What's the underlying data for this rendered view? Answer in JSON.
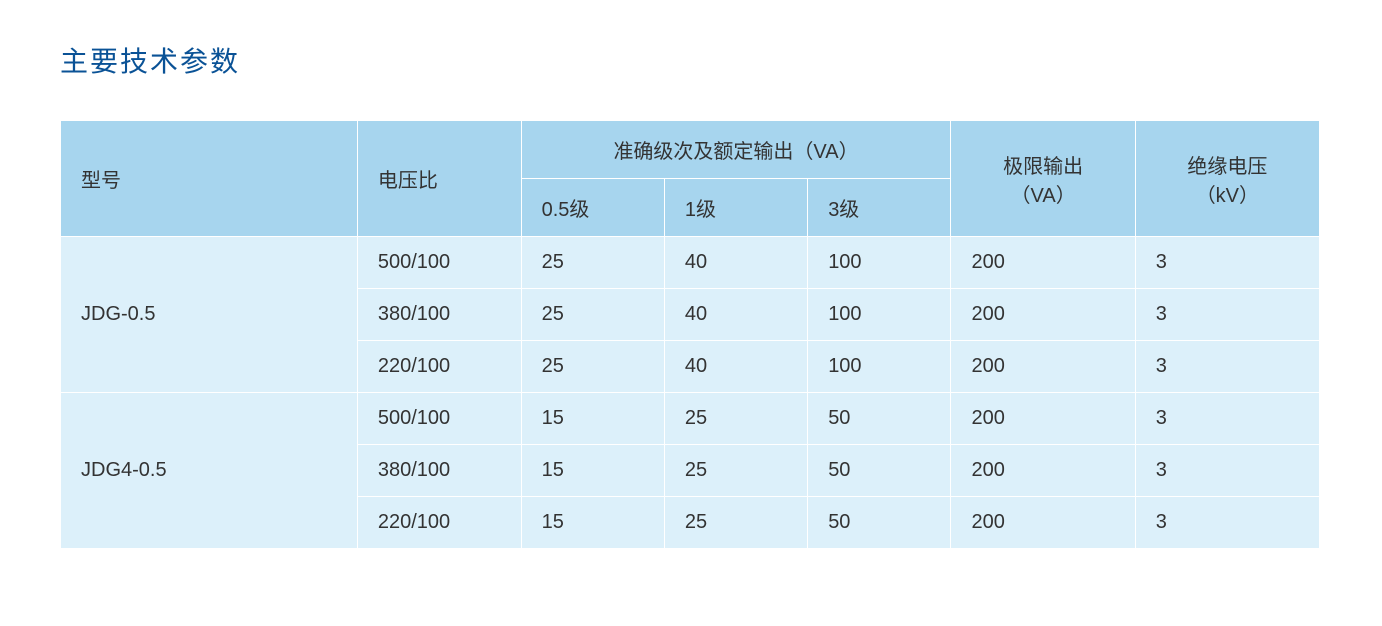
{
  "title": "主要技术参数",
  "columns": {
    "model": "型号",
    "ratio": "电压比",
    "accuracy_group": "准确级次及额定输出（VA）",
    "level_05": "0.5级",
    "level_1": "1级",
    "level_3": "3级",
    "limit_output": "极限输出\n（VA）",
    "insulation": "绝缘电压\n（kV）",
    "limit_output_line1": "极限输出",
    "limit_output_line2": "（VA）",
    "insulation_line1": "绝缘电压",
    "insulation_line2": "（kV）"
  },
  "groups": [
    {
      "model": "JDG-0.5",
      "rows": [
        {
          "ratio": "500/100",
          "l05": "25",
          "l1": "40",
          "l3": "100",
          "limit": "200",
          "insul": "3"
        },
        {
          "ratio": "380/100",
          "l05": "25",
          "l1": "40",
          "l3": "100",
          "limit": "200",
          "insul": "3"
        },
        {
          "ratio": "220/100",
          "l05": "25",
          "l1": "40",
          "l3": "100",
          "limit": "200",
          "insul": "3"
        }
      ]
    },
    {
      "model": "JDG4-0.5",
      "rows": [
        {
          "ratio": "500/100",
          "l05": "15",
          "l1": "25",
          "l3": "50",
          "limit": "200",
          "insul": "3"
        },
        {
          "ratio": "380/100",
          "l05": "15",
          "l1": "25",
          "l3": "50",
          "limit": "200",
          "insul": "3"
        },
        {
          "ratio": "220/100",
          "l05": "15",
          "l1": "25",
          "l3": "50",
          "limit": "200",
          "insul": "3"
        }
      ]
    }
  ],
  "styling": {
    "title_color": "#0a5296",
    "title_fontsize": 28,
    "header_bg": "#a7d5ee",
    "data_bg": "#dcf0fa",
    "border_color": "#ffffff",
    "text_color": "#333333",
    "cell_fontsize": 20,
    "background_color": "#ffffff"
  }
}
